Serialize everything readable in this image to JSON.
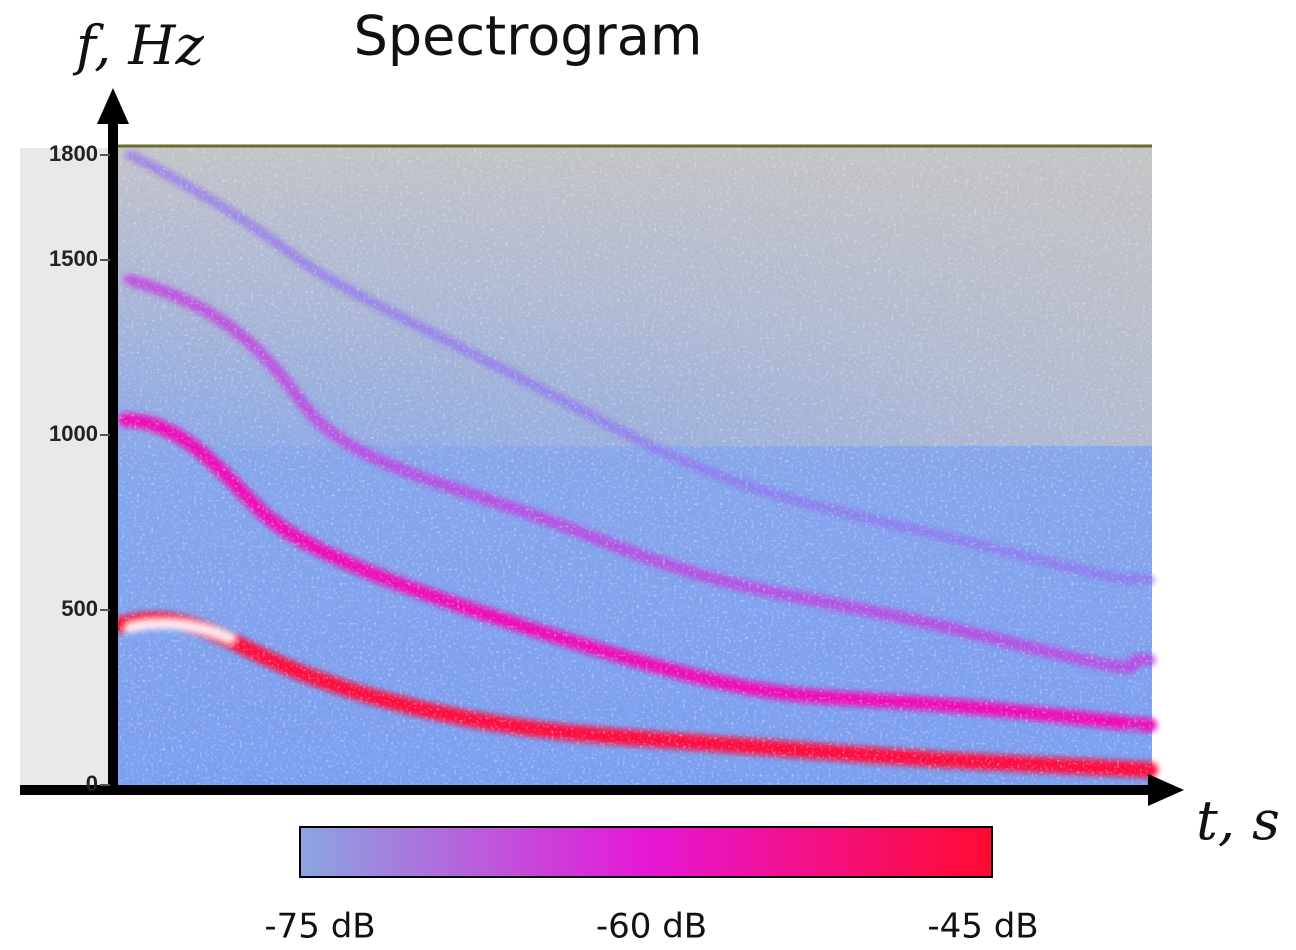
{
  "chart_data": {
    "type": "spectrogram",
    "title": "Spectrogram",
    "y_label": "f, Hz",
    "x_label": "t, s",
    "ylim": [
      0,
      1800
    ],
    "yticks": [
      0,
      500,
      1000,
      1500,
      1800
    ],
    "colorbar": {
      "lim": [
        -75,
        -45
      ],
      "ticks": [
        {
          "value": -75,
          "label": "-75 dB"
        },
        {
          "value": -60,
          "label": "-60 dB"
        },
        {
          "value": -45,
          "label": "-45 dB"
        }
      ],
      "colors": [
        "#8aa6e0",
        "#e617d6",
        "#ff0a30"
      ]
    }
  }
}
